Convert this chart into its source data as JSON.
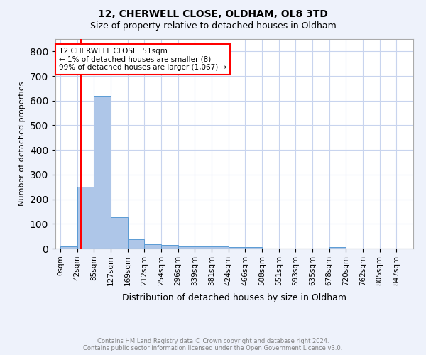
{
  "title": "12, CHERWELL CLOSE, OLDHAM, OL8 3TD",
  "subtitle": "Size of property relative to detached houses in Oldham",
  "xlabel": "Distribution of detached houses by size in Oldham",
  "ylabel": "Number of detached properties",
  "footer_line1": "Contains HM Land Registry data © Crown copyright and database right 2024.",
  "footer_line2": "Contains public sector information licensed under the Open Government Licence v3.0.",
  "bin_labels": [
    "0sqm",
    "42sqm",
    "85sqm",
    "127sqm",
    "169sqm",
    "212sqm",
    "254sqm",
    "296sqm",
    "339sqm",
    "381sqm",
    "424sqm",
    "466sqm",
    "508sqm",
    "551sqm",
    "593sqm",
    "635sqm",
    "678sqm",
    "720sqm",
    "762sqm",
    "805sqm",
    "847sqm"
  ],
  "bar_heights": [
    8,
    250,
    620,
    127,
    37,
    18,
    13,
    10,
    10,
    10,
    5,
    5,
    0,
    0,
    0,
    0,
    7,
    0,
    0,
    0,
    0
  ],
  "bar_color": "#aec6e8",
  "bar_edge_color": "#5b9bd5",
  "annotation_text": "12 CHERWELL CLOSE: 51sqm\n← 1% of detached houses are smaller (8)\n99% of detached houses are larger (1,067) →",
  "annotation_box_color": "white",
  "annotation_box_edge_color": "red",
  "property_line_color": "red",
  "ylim": [
    0,
    850
  ],
  "background_color": "#eef2fb",
  "plot_background": "white",
  "grid_color": "#c8d4ee"
}
